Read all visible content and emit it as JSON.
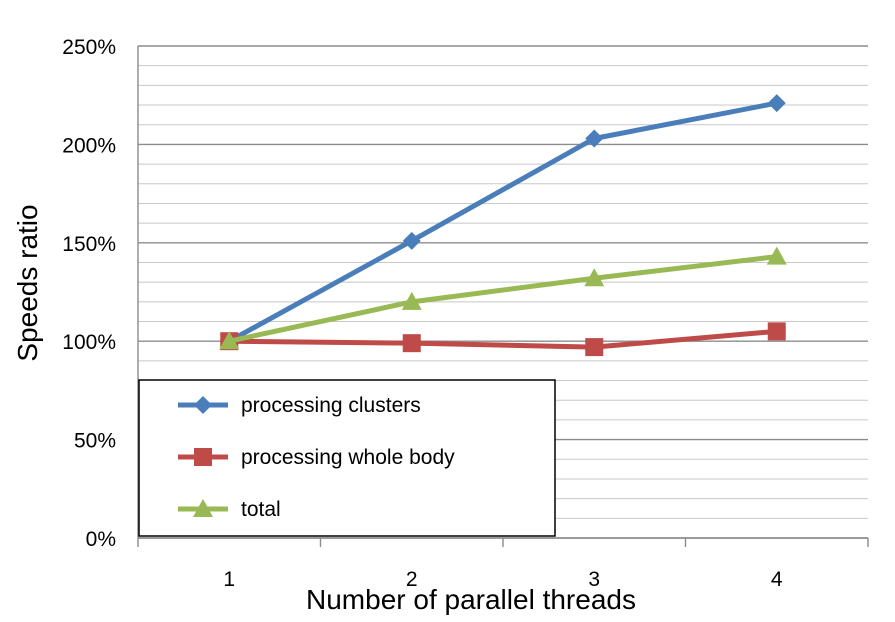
{
  "chart_data": {
    "type": "line",
    "title": "",
    "xlabel": "Number of parallel threads",
    "ylabel": "Speeds ratio",
    "categories": [
      "1",
      "2",
      "3",
      "4"
    ],
    "ylim": [
      0,
      250
    ],
    "yticks": [
      "0%",
      "50%",
      "100%",
      "150%",
      "200%",
      "250%"
    ],
    "grid": true,
    "legend_position": "bottom-left",
    "series": [
      {
        "name": "processing clusters",
        "values": [
          100,
          151,
          203,
          221
        ],
        "marker": "diamond",
        "color": "#4a7ebb"
      },
      {
        "name": "processing whole body",
        "values": [
          100,
          99,
          97,
          105
        ],
        "marker": "square",
        "color": "#be4b48"
      },
      {
        "name": "total",
        "values": [
          100,
          120,
          132,
          143
        ],
        "marker": "triangle",
        "color": "#98b954"
      }
    ]
  }
}
